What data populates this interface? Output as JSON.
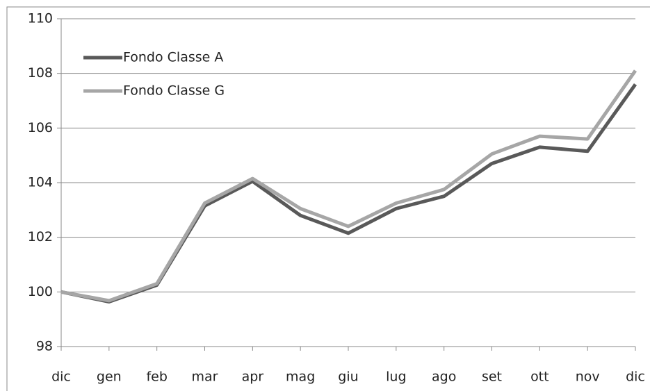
{
  "chart_data": {
    "type": "line",
    "categories": [
      "dic",
      "gen",
      "feb",
      "mar",
      "apr",
      "mag",
      "giu",
      "lug",
      "ago",
      "set",
      "ott",
      "nov",
      "dic"
    ],
    "series": [
      {
        "name": "Fondo Classe A",
        "color": "#595959",
        "values": [
          100,
          99.64,
          100.25,
          103.15,
          104.05,
          102.8,
          102.15,
          103.05,
          103.5,
          104.7,
          105.3,
          105.15,
          107.6
        ]
      },
      {
        "name": "Fondo Classe G",
        "color": "#a6a6a6",
        "values": [
          100,
          99.68,
          100.3,
          103.25,
          104.15,
          103.05,
          102.4,
          103.25,
          103.75,
          105.05,
          105.7,
          105.6,
          108.1
        ]
      }
    ],
    "ylim": [
      98,
      110
    ],
    "yticks": [
      98,
      100,
      102,
      104,
      106,
      108,
      110
    ],
    "grid": true,
    "legend": "upper left"
  }
}
